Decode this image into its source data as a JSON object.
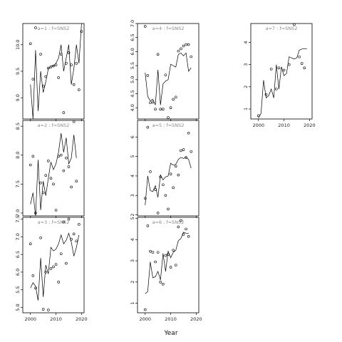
{
  "chart_data": {
    "type": "scatter",
    "xlabel": "Year",
    "xlim": [
      1997,
      2021
    ],
    "xticks": [
      2000,
      2010,
      2020
    ],
    "panels": [
      {
        "label": "a=1 : f=SNS2",
        "ylim": [
          8.6,
          10.4
        ],
        "yticks": [
          9.0,
          9.5,
          10.0
        ],
        "points": [
          [
            2000,
            10.02
          ],
          [
            2001,
            9.35
          ],
          [
            2002,
            10.32
          ],
          [
            2004,
            9.82
          ],
          [
            2005,
            9.22
          ],
          [
            2006,
            9.4
          ],
          [
            2007,
            9.56
          ],
          [
            2008,
            9.58
          ],
          [
            2009,
            9.6
          ],
          [
            2010,
            9.62
          ],
          [
            2011,
            9.38
          ],
          [
            2012,
            9.82
          ],
          [
            2013,
            8.72
          ],
          [
            2014,
            9.65
          ],
          [
            2015,
            9.85
          ],
          [
            2016,
            9.62
          ],
          [
            2017,
            9.25
          ],
          [
            2018,
            9.65
          ],
          [
            2019,
            9.15
          ],
          [
            2020,
            10.25
          ]
        ],
        "fit": [
          [
            2000,
            9.25
          ],
          [
            2001,
            8.6
          ],
          [
            2002,
            9.9
          ],
          [
            2003,
            8.75
          ],
          [
            2004,
            9.5
          ],
          [
            2005,
            9.1
          ],
          [
            2006,
            9.3
          ],
          [
            2007,
            9.55
          ],
          [
            2008,
            9.6
          ],
          [
            2009,
            9.6
          ],
          [
            2010,
            9.65
          ],
          [
            2011,
            9.75
          ],
          [
            2012,
            10.0
          ],
          [
            2013,
            9.5
          ],
          [
            2014,
            9.75
          ],
          [
            2015,
            10.0
          ],
          [
            2016,
            9.25
          ],
          [
            2017,
            9.55
          ],
          [
            2018,
            10.0
          ],
          [
            2019,
            9.65
          ],
          [
            2020,
            10.4
          ]
        ]
      },
      {
        "label": "a=2 : f=SNS2",
        "ylim": [
          6.95,
          8.6
        ],
        "yticks": [
          7.0,
          7.5,
          8.0,
          8.5
        ],
        "points": [
          [
            2000,
            7.83
          ],
          [
            2001,
            7.98
          ],
          [
            2002,
            7.0
          ],
          [
            2004,
            7.52
          ],
          [
            2005,
            7.35
          ],
          [
            2006,
            7.65
          ],
          [
            2007,
            7.9
          ],
          [
            2008,
            7.6
          ],
          [
            2009,
            7.5
          ],
          [
            2010,
            7.05
          ],
          [
            2011,
            7.98
          ],
          [
            2012,
            8.0
          ],
          [
            2013,
            7.73
          ],
          [
            2014,
            7.95
          ],
          [
            2015,
            7.8
          ],
          [
            2016,
            7.45
          ],
          [
            2017,
            8.58
          ],
          [
            2018,
            7.55
          ]
        ],
        "fit": [
          [
            2000,
            7.15
          ],
          [
            2001,
            7.35
          ],
          [
            2002,
            6.95
          ],
          [
            2003,
            7.92
          ],
          [
            2004,
            7.05
          ],
          [
            2005,
            7.55
          ],
          [
            2006,
            7.3
          ],
          [
            2007,
            7.6
          ],
          [
            2008,
            7.88
          ],
          [
            2009,
            7.75
          ],
          [
            2010,
            7.85
          ],
          [
            2011,
            8.05
          ],
          [
            2012,
            8.38
          ],
          [
            2013,
            8.05
          ],
          [
            2014,
            8.3
          ],
          [
            2015,
            7.85
          ],
          [
            2016,
            7.95
          ],
          [
            2017,
            8.35
          ],
          [
            2018,
            7.95
          ]
        ]
      },
      {
        "label": "a=3 : f=SNS2",
        "ylim": [
          4.85,
          7.55
        ],
        "yticks": [
          5.0,
          5.5,
          6.0,
          6.5,
          7.0,
          7.5
        ],
        "points": [
          [
            2000,
            6.8
          ],
          [
            2001,
            5.9
          ],
          [
            2002,
            5.55
          ],
          [
            2004,
            6.97
          ],
          [
            2005,
            4.95
          ],
          [
            2006,
            6.0
          ],
          [
            2007,
            4.93
          ],
          [
            2008,
            6.1
          ],
          [
            2009,
            6.15
          ],
          [
            2010,
            6.22
          ],
          [
            2011,
            5.72
          ],
          [
            2012,
            6.52
          ],
          [
            2013,
            7.42
          ],
          [
            2014,
            6.25
          ],
          [
            2015,
            7.5
          ],
          [
            2016,
            6.93
          ],
          [
            2017,
            7.08
          ],
          [
            2018,
            6.88
          ],
          [
            2019,
            7.35
          ]
        ],
        "fit": [
          [
            2000,
            5.55
          ],
          [
            2001,
            5.7
          ],
          [
            2002,
            5.6
          ],
          [
            2003,
            5.2
          ],
          [
            2004,
            6.4
          ],
          [
            2005,
            5.3
          ],
          [
            2006,
            6.2
          ],
          [
            2007,
            5.95
          ],
          [
            2008,
            6.7
          ],
          [
            2009,
            6.6
          ],
          [
            2010,
            6.65
          ],
          [
            2011,
            6.8
          ],
          [
            2012,
            7.05
          ],
          [
            2013,
            6.8
          ],
          [
            2014,
            6.9
          ],
          [
            2015,
            7.1
          ],
          [
            2016,
            6.85
          ],
          [
            2017,
            6.45
          ],
          [
            2018,
            6.7
          ],
          [
            2019,
            7.05
          ]
        ]
      },
      {
        "label": "a=4 : f=SNS2",
        "ylim": [
          3.6,
          7.0
        ],
        "yticks": [
          4.0,
          4.5,
          5.0,
          5.5,
          6.0,
          6.5,
          7.0
        ],
        "points": [
          [
            2000,
            6.9
          ],
          [
            2001,
            5.15
          ],
          [
            2002,
            4.18
          ],
          [
            2003,
            4.2
          ],
          [
            2004,
            3.95
          ],
          [
            2005,
            5.9
          ],
          [
            2006,
            3.95
          ],
          [
            2007,
            3.95
          ],
          [
            2008,
            5.17
          ],
          [
            2009,
            3.65
          ],
          [
            2010,
            4.0
          ],
          [
            2011,
            4.3
          ],
          [
            2012,
            4.38
          ],
          [
            2013,
            6.02
          ],
          [
            2014,
            6.1
          ],
          [
            2015,
            6.2
          ],
          [
            2016,
            6.25
          ],
          [
            2017,
            6.25
          ],
          [
            2018,
            5.82
          ]
        ],
        "fit": [
          [
            2000,
            5.25
          ],
          [
            2001,
            4.4
          ],
          [
            2002,
            4.25
          ],
          [
            2003,
            4.3
          ],
          [
            2004,
            4.1
          ],
          [
            2005,
            5.35
          ],
          [
            2006,
            4.1
          ],
          [
            2007,
            4.85
          ],
          [
            2008,
            4.95
          ],
          [
            2009,
            5.0
          ],
          [
            2010,
            5.55
          ],
          [
            2011,
            5.5
          ],
          [
            2012,
            5.45
          ],
          [
            2013,
            5.9
          ],
          [
            2014,
            5.95
          ],
          [
            2015,
            5.85
          ],
          [
            2016,
            5.95
          ],
          [
            2017,
            5.3
          ],
          [
            2018,
            5.42
          ]
        ]
      },
      {
        "label": "a=5 : f=SNS2",
        "ylim": [
          1.95,
          6.85
        ],
        "yticks": [
          2,
          3,
          4,
          5,
          6
        ],
        "points": [
          [
            2000,
            2.85
          ],
          [
            2001,
            6.5
          ],
          [
            2002,
            4.22
          ],
          [
            2004,
            3.3
          ],
          [
            2005,
            2.1
          ],
          [
            2006,
            3.95
          ],
          [
            2007,
            3.55
          ],
          [
            2008,
            3.0
          ],
          [
            2009,
            2.3
          ],
          [
            2010,
            4.1
          ],
          [
            2011,
            3.4
          ],
          [
            2012,
            4.5
          ],
          [
            2013,
            4.05
          ],
          [
            2014,
            5.3
          ],
          [
            2015,
            5.35
          ],
          [
            2016,
            4.95
          ],
          [
            2017,
            6.2
          ],
          [
            2018,
            5.25
          ]
        ],
        "fit": [
          [
            2000,
            2.5
          ],
          [
            2001,
            4.0
          ],
          [
            2002,
            3.25
          ],
          [
            2003,
            3.2
          ],
          [
            2004,
            3.5
          ],
          [
            2005,
            2.9
          ],
          [
            2006,
            4.05
          ],
          [
            2007,
            3.8
          ],
          [
            2008,
            3.95
          ],
          [
            2009,
            4.0
          ],
          [
            2010,
            4.65
          ],
          [
            2011,
            4.55
          ],
          [
            2012,
            4.6
          ],
          [
            2013,
            4.85
          ],
          [
            2014,
            4.95
          ],
          [
            2015,
            4.9
          ],
          [
            2016,
            4.95
          ],
          [
            2017,
            4.85
          ],
          [
            2018,
            4.4
          ]
        ]
      },
      {
        "label": "a=6 : f=SNS2",
        "ylim": [
          0.55,
          5.05
        ],
        "yticks": [
          1,
          2,
          3,
          4,
          5
        ],
        "points": [
          [
            2000,
            0.7
          ],
          [
            2001,
            4.65
          ],
          [
            2002,
            3.45
          ],
          [
            2003,
            3.4
          ],
          [
            2004,
            2.95
          ],
          [
            2005,
            3.4
          ],
          [
            2006,
            2.0
          ],
          [
            2007,
            1.9
          ],
          [
            2008,
            3.25
          ],
          [
            2009,
            3.3
          ],
          [
            2010,
            2.7
          ],
          [
            2011,
            3.5
          ],
          [
            2012,
            2.8
          ],
          [
            2013,
            4.6
          ],
          [
            2014,
            4.9
          ],
          [
            2015,
            4.25
          ],
          [
            2016,
            4.5
          ],
          [
            2017,
            4.15
          ]
        ],
        "fit": [
          [
            2000,
            1.45
          ],
          [
            2001,
            1.55
          ],
          [
            2002,
            2.95
          ],
          [
            2003,
            2.2
          ],
          [
            2004,
            2.25
          ],
          [
            2005,
            2.5
          ],
          [
            2006,
            2.1
          ],
          [
            2007,
            3.35
          ],
          [
            2008,
            2.5
          ],
          [
            2009,
            3.45
          ],
          [
            2010,
            3.15
          ],
          [
            2011,
            3.4
          ],
          [
            2012,
            3.5
          ],
          [
            2013,
            3.95
          ],
          [
            2014,
            4.05
          ],
          [
            2015,
            4.35
          ],
          [
            2016,
            4.3
          ],
          [
            2017,
            4.3
          ]
        ]
      },
      {
        "label": "a=7 : f=SNS2",
        "ylim": [
          0.55,
          4.85
        ],
        "yticks": [
          1,
          2,
          3,
          4
        ],
        "points": [
          [
            2000,
            0.7
          ],
          [
            2003,
            1.65
          ],
          [
            2005,
            2.8
          ],
          [
            2007,
            1.9
          ],
          [
            2008,
            2.85
          ],
          [
            2010,
            2.75
          ],
          [
            2012,
            3.0
          ],
          [
            2014,
            4.8
          ],
          [
            2016,
            3.35
          ],
          [
            2017,
            3.05
          ],
          [
            2018,
            2.85
          ]
        ],
        "fit": [
          [
            2000,
            0.6
          ],
          [
            2001,
            0.8
          ],
          [
            2002,
            2.3
          ],
          [
            2003,
            1.5
          ],
          [
            2004,
            1.6
          ],
          [
            2005,
            1.9
          ],
          [
            2006,
            1.5
          ],
          [
            2007,
            3.0
          ],
          [
            2008,
            1.9
          ],
          [
            2009,
            2.9
          ],
          [
            2010,
            2.5
          ],
          [
            2011,
            2.6
          ],
          [
            2012,
            3.35
          ],
          [
            2013,
            3.3
          ],
          [
            2014,
            3.25
          ],
          [
            2015,
            3.3
          ],
          [
            2016,
            3.65
          ],
          [
            2017,
            3.7
          ],
          [
            2018,
            3.72
          ],
          [
            2019,
            3.7
          ]
        ]
      }
    ]
  }
}
